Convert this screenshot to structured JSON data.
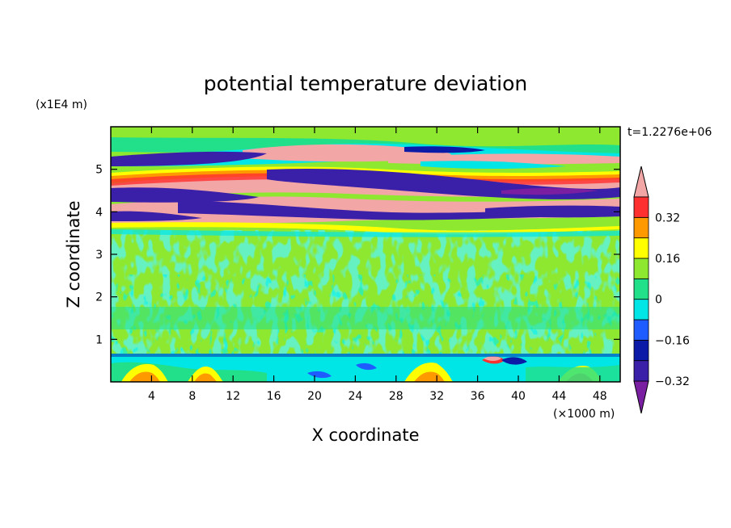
{
  "chart_data": {
    "type": "heatmap",
    "title": "potential temperature deviation",
    "xlabel": "X coordinate",
    "ylabel": "Z coordinate",
    "x_unit": "(×1000 m)",
    "y_unit": "(x1E4 m)",
    "time_label": "t=1.2276e+06",
    "xlim": [
      0,
      50
    ],
    "ylim": [
      0,
      6
    ],
    "x_ticks": [
      4,
      8,
      12,
      16,
      20,
      24,
      28,
      32,
      36,
      40,
      44,
      48
    ],
    "y_ticks": [
      1,
      2,
      3,
      4,
      5
    ],
    "colorbar": {
      "levels": [
        -0.4,
        -0.32,
        -0.24,
        -0.16,
        -0.08,
        0,
        0.08,
        0.16,
        0.24,
        0.32,
        0.4
      ],
      "labels": [
        "0.32",
        "0.16",
        "0",
        "−0.16",
        "−0.32"
      ],
      "label_values": [
        0.32,
        0.16,
        0,
        -0.16,
        -0.32
      ],
      "colors": [
        "#7a1fa2",
        "#3a1fa8",
        "#0c1aa8",
        "#1e5cff",
        "#00e6e6",
        "#22e08a",
        "#8ee830",
        "#ffff00",
        "#ff9900",
        "#ff3030",
        "#f2a6a6"
      ],
      "extend": "both"
    },
    "bands": [
      {
        "z_range": [
          5.0,
          5.95
        ],
        "pattern": "green background with thin purple, pink and orange layers near z=5.1 and z=5.4"
      },
      {
        "z_range": [
          3.7,
          5.0
        ],
        "pattern": "alternating purple and pink layered structures with yellow/red/cyan edges"
      },
      {
        "z_range": [
          0.7,
          3.7
        ],
        "pattern": "mostly light-green and green mottled field, near zero"
      },
      {
        "z_range": [
          0.0,
          0.7
        ],
        "pattern": "cyan and blue patches with yellow/orange plumes rising from the bottom"
      }
    ]
  }
}
